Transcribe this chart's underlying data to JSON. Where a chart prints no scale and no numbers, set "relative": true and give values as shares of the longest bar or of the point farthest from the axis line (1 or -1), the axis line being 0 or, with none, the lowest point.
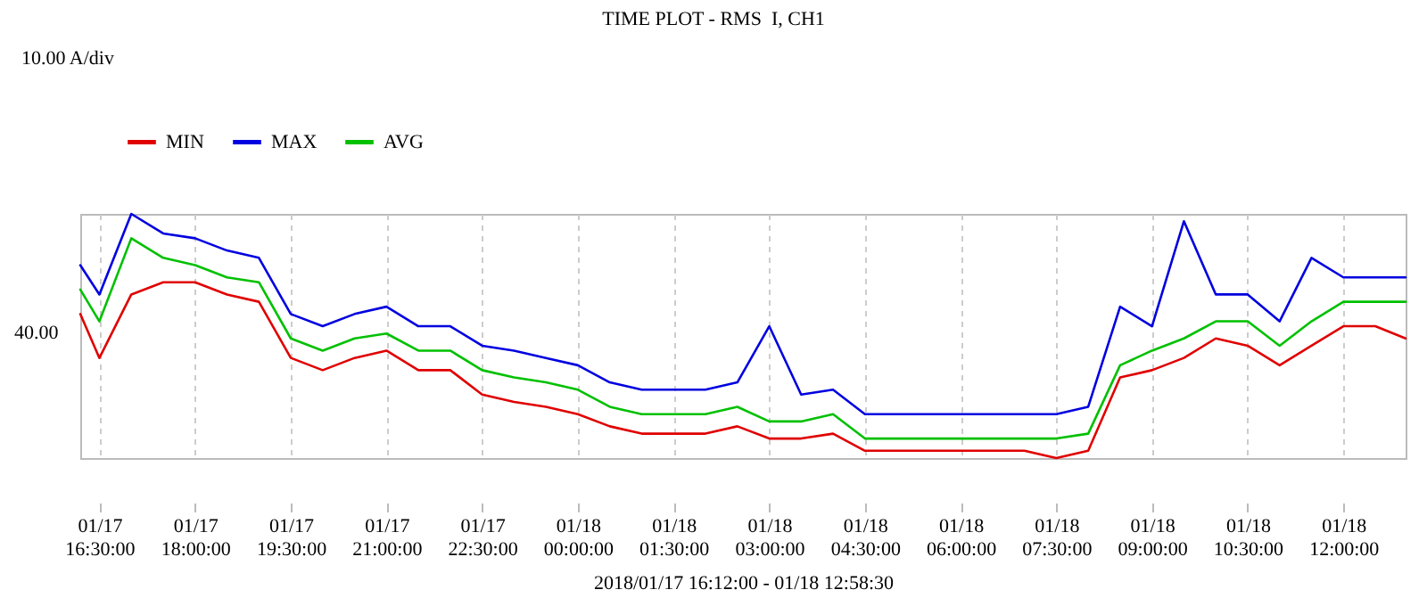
{
  "chart_data": {
    "type": "line",
    "title": "TIME PLOT - RMS  I, CH1",
    "xlabel": "2018/01/17 16:12:00 - 01/18 12:58:30",
    "annotations": [
      "10.00 A/div",
      "40.00"
    ],
    "relative": true,
    "x": [
      "2018-01-17T16:12",
      "2018-01-17T16:30",
      "2018-01-17T17:00",
      "2018-01-17T17:30",
      "2018-01-17T18:00",
      "2018-01-17T18:30",
      "2018-01-17T19:00",
      "2018-01-17T19:30",
      "2018-01-17T20:00",
      "2018-01-17T20:30",
      "2018-01-17T21:00",
      "2018-01-17T21:30",
      "2018-01-17T22:00",
      "2018-01-17T22:30",
      "2018-01-17T23:00",
      "2018-01-17T23:30",
      "2018-01-18T00:00",
      "2018-01-18T00:30",
      "2018-01-18T01:00",
      "2018-01-18T01:30",
      "2018-01-18T02:00",
      "2018-01-18T02:30",
      "2018-01-18T03:00",
      "2018-01-18T03:30",
      "2018-01-18T04:00",
      "2018-01-18T04:30",
      "2018-01-18T05:00",
      "2018-01-18T05:30",
      "2018-01-18T06:00",
      "2018-01-18T06:30",
      "2018-01-18T07:00",
      "2018-01-18T07:30",
      "2018-01-18T08:00",
      "2018-01-18T08:30",
      "2018-01-18T09:00",
      "2018-01-18T09:30",
      "2018-01-18T10:00",
      "2018-01-18T10:30",
      "2018-01-18T11:00",
      "2018-01-18T11:30",
      "2018-01-18T12:00",
      "2018-01-18T12:30",
      "2018-01-18T12:58:30"
    ],
    "series": [
      {
        "name": "MIN",
        "color": "#e00000",
        "values": [
          0.59,
          0.41,
          0.67,
          0.72,
          0.72,
          0.67,
          0.64,
          0.41,
          0.36,
          0.41,
          0.44,
          0.36,
          0.36,
          0.26,
          0.23,
          0.21,
          0.18,
          0.13,
          0.1,
          0.1,
          0.1,
          0.13,
          0.08,
          0.08,
          0.1,
          0.03,
          0.03,
          0.03,
          0.03,
          0.03,
          0.03,
          0,
          0.03,
          0.33,
          0.36,
          0.41,
          0.49,
          0.46,
          0.38,
          0.46,
          0.54,
          0.54,
          0.49
        ]
      },
      {
        "name": "MAX",
        "color": "#0000e0",
        "values": [
          0.79,
          0.67,
          1,
          0.92,
          0.9,
          0.85,
          0.82,
          0.59,
          0.54,
          0.59,
          0.62,
          0.54,
          0.54,
          0.46,
          0.44,
          0.41,
          0.38,
          0.31,
          0.28,
          0.28,
          0.28,
          0.31,
          0.54,
          0.26,
          0.28,
          0.18,
          0.18,
          0.18,
          0.18,
          0.18,
          0.18,
          0.18,
          0.21,
          0.62,
          0.54,
          0.97,
          0.67,
          0.67,
          0.56,
          0.82,
          0.74,
          0.74,
          0.74
        ]
      },
      {
        "name": "AVG",
        "color": "#00c000",
        "values": [
          0.69,
          0.56,
          0.9,
          0.82,
          0.79,
          0.74,
          0.72,
          0.49,
          0.44,
          0.49,
          0.51,
          0.44,
          0.44,
          0.36,
          0.33,
          0.31,
          0.28,
          0.21,
          0.18,
          0.18,
          0.18,
          0.21,
          0.15,
          0.15,
          0.18,
          0.08,
          0.08,
          0.08,
          0.08,
          0.08,
          0.08,
          0.08,
          0.1,
          0.38,
          0.44,
          0.49,
          0.56,
          0.56,
          0.46,
          0.56,
          0.64,
          0.64,
          0.64
        ]
      }
    ],
    "xlim": [
      "2018-01-17T16:12",
      "2018-01-18T12:58:30"
    ],
    "xticks": [
      {
        "value": "2018-01-17T16:30",
        "label": "01/17 16:30:00"
      },
      {
        "value": "2018-01-17T18:00",
        "label": "01/17 18:00:00"
      },
      {
        "value": "2018-01-17T19:30",
        "label": "01/17 19:30:00"
      },
      {
        "value": "2018-01-17T21:00",
        "label": "01/17 21:00:00"
      },
      {
        "value": "2018-01-17T22:30",
        "label": "01/17 22:30:00"
      },
      {
        "value": "2018-01-18T00:00",
        "label": "01/18 00:00:00"
      },
      {
        "value": "2018-01-18T01:30",
        "label": "01/18 01:30:00"
      },
      {
        "value": "2018-01-18T03:00",
        "label": "01/18 03:00:00"
      },
      {
        "value": "2018-01-18T04:30",
        "label": "01/18 04:30:00"
      },
      {
        "value": "2018-01-18T06:00",
        "label": "01/18 06:00:00"
      },
      {
        "value": "2018-01-18T07:30",
        "label": "01/18 07:30:00"
      },
      {
        "value": "2018-01-18T09:00",
        "label": "01/18 09:00:00"
      },
      {
        "value": "2018-01-18T10:30",
        "label": "01/18 10:30:00"
      },
      {
        "value": "2018-01-18T12:00",
        "label": "01/18 12:00:00"
      }
    ],
    "grid": "x",
    "legend": "top left"
  }
}
